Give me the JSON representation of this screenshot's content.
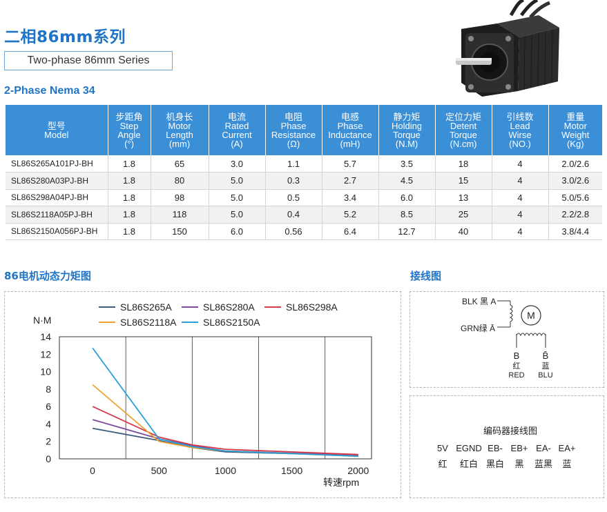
{
  "header": {
    "title_cn": "二相86mm系列",
    "title_en": "Two-phase 86mm Series",
    "subtitle": "2-Phase Nema 34"
  },
  "table": {
    "columns": [
      {
        "cn": "型号",
        "en": [
          "Model"
        ]
      },
      {
        "cn": "步距角",
        "en": [
          "Step",
          "Angle",
          "(°)"
        ]
      },
      {
        "cn": "机身长",
        "en": [
          "Motor",
          "Length",
          "(mm)"
        ]
      },
      {
        "cn": "电流",
        "en": [
          "Rated",
          "Current",
          "(A)"
        ]
      },
      {
        "cn": "电阻",
        "en": [
          "Phase",
          "Resistance",
          "(Ω)"
        ]
      },
      {
        "cn": "电感",
        "en": [
          "Phase",
          "Inductance",
          "(mH)"
        ]
      },
      {
        "cn": "静力矩",
        "en": [
          "Holding",
          "Torque",
          "(N.M)"
        ]
      },
      {
        "cn": "定位力矩",
        "en": [
          "Detent",
          "Torque",
          "(N.cm)"
        ]
      },
      {
        "cn": "引线数",
        "en": [
          "Lead",
          "Wirse",
          "(NO.)"
        ]
      },
      {
        "cn": "重量",
        "en": [
          "Motor",
          "Weight",
          "(Kg)"
        ]
      }
    ],
    "rows": [
      [
        "SL86S265A101PJ-BH",
        "1.8",
        "65",
        "3.0",
        "1.1",
        "5.7",
        "3.5",
        "18",
        "4",
        "2.0/2.6"
      ],
      [
        "SL86S280A03PJ-BH",
        "1.8",
        "80",
        "5.0",
        "0.3",
        "2.7",
        "4.5",
        "15",
        "4",
        "3.0/2.6"
      ],
      [
        "SL86S298A04PJ-BH",
        "1.8",
        "98",
        "5.0",
        "0.5",
        "3.4",
        "6.0",
        "13",
        "4",
        "5.0/5.6"
      ],
      [
        "SL86S2118A05PJ-BH",
        "1.8",
        "118",
        "5.0",
        "0.4",
        "5.2",
        "8.5",
        "25",
        "4",
        "2.2/2.8"
      ],
      [
        "SL86S2150A056PJ-BH",
        "1.8",
        "150",
        "6.0",
        "0.56",
        "6.4",
        "12.7",
        "40",
        "4",
        "3.8/4.4"
      ]
    ]
  },
  "chart_section_title": "86电机动态力矩图",
  "wiring_section_title": "接线图",
  "chart_data": {
    "type": "line",
    "title": "",
    "ylabel": "N·M",
    "xlabel": "转速rpm",
    "xlim": [
      -250,
      2100
    ],
    "ylim": [
      0,
      14
    ],
    "xticks": [
      "0",
      "500",
      "1000",
      "1500",
      "2000"
    ],
    "yticks": [
      "0",
      "2",
      "4",
      "6",
      "8",
      "10",
      "12",
      "14"
    ],
    "grid": "vertical",
    "legend_position": "top",
    "x": [
      0,
      500,
      750,
      1000,
      2000
    ],
    "series": [
      {
        "name": "SL86S265A",
        "color": "#3d5a7a",
        "values": [
          3.5,
          2.1,
          1.3,
          0.8,
          0.4
        ]
      },
      {
        "name": "SL86S280A",
        "color": "#7b4a9e",
        "values": [
          4.5,
          2.3,
          1.5,
          0.9,
          0.4
        ]
      },
      {
        "name": "SL86S298A",
        "color": "#d33a4a",
        "values": [
          6.0,
          2.5,
          1.6,
          1.1,
          0.5
        ]
      },
      {
        "name": "SL86S2118A",
        "color": "#f0a030",
        "values": [
          8.5,
          2.0,
          1.3,
          0.9,
          0.3
        ]
      },
      {
        "name": "SL86S2150A",
        "color": "#2a9ed8",
        "values": [
          12.7,
          2.3,
          1.4,
          0.9,
          0.3
        ]
      }
    ]
  },
  "wiring": {
    "blk_label": "BLK 黑 A",
    "grn_label": "GRN绿 Ā",
    "motor_label": "M",
    "b_label": "B",
    "b_cn": "红",
    "b_en": "RED",
    "bbar_label": "B̄",
    "bbar_cn": "蓝",
    "bbar_en": "BLU"
  },
  "encoder": {
    "title": "编码器接线图",
    "pins": [
      "5V",
      "EGND",
      "EB-",
      "EB+",
      "EA-",
      "EA+"
    ],
    "colors": [
      "红",
      "红白",
      "黑白",
      "黑",
      "蓝黑",
      "蓝"
    ]
  }
}
